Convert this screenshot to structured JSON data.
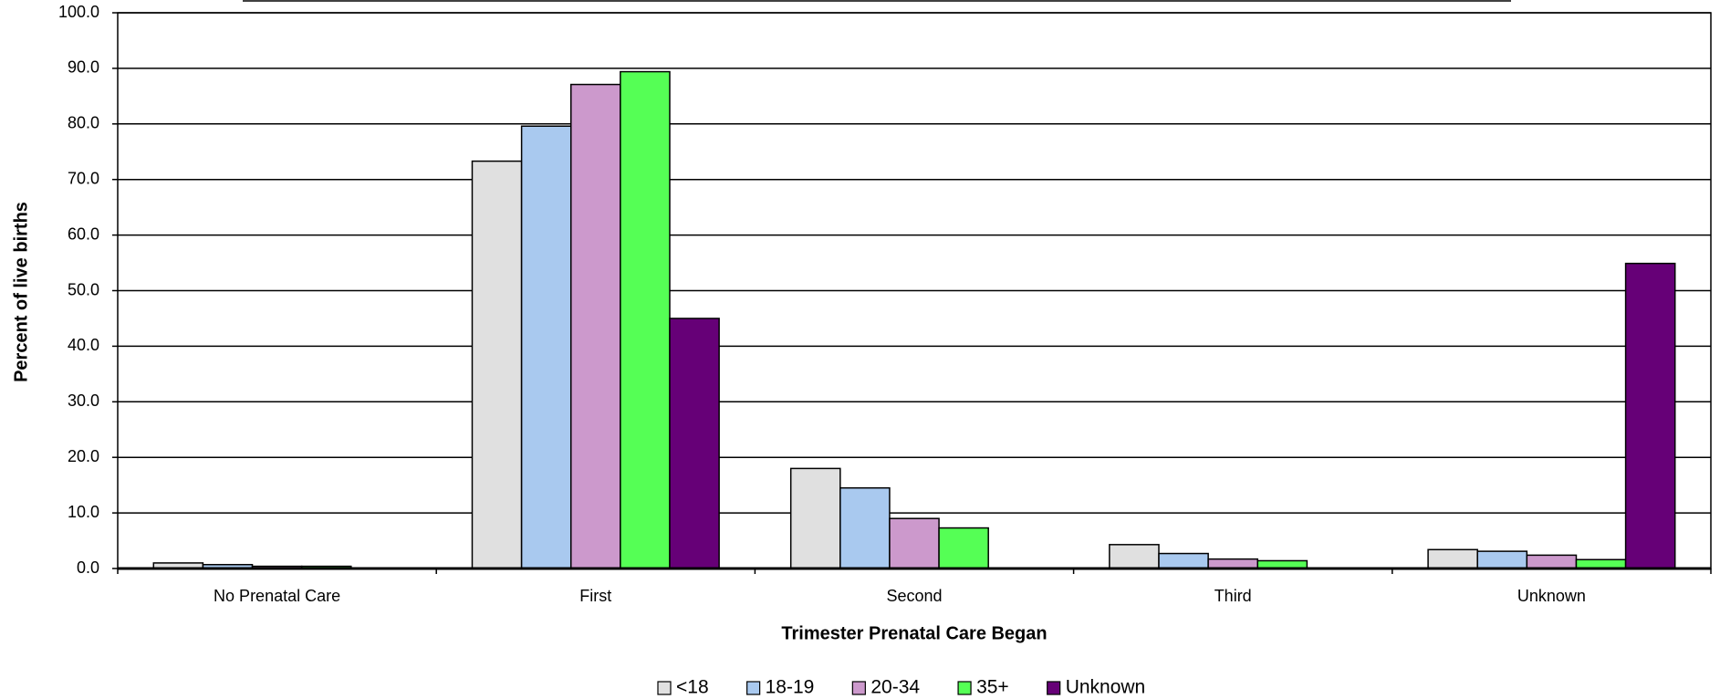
{
  "chart_data": {
    "type": "bar",
    "y_label": "Percent of live births",
    "x_label": "Trimester Prenatal Care Began",
    "categories": [
      "No Prenatal Care",
      "First",
      "Second",
      "Third",
      "Unknown"
    ],
    "series": [
      {
        "name": "<18",
        "color": "#e0e0e0",
        "values": [
          1.0,
          73.3,
          18.0,
          4.3,
          3.4
        ]
      },
      {
        "name": "18-19",
        "color": "#a9c9ef",
        "values": [
          0.7,
          79.6,
          14.5,
          2.7,
          3.1
        ]
      },
      {
        "name": "20-34",
        "color": "#cc99cc",
        "values": [
          0.4,
          87.1,
          9.0,
          1.7,
          2.4
        ]
      },
      {
        "name": "35+",
        "color": "#55ff55",
        "values": [
          0.4,
          89.4,
          7.3,
          1.4,
          1.6
        ]
      },
      {
        "name": "Unknown",
        "color": "#660077",
        "values": [
          0,
          45.0,
          0,
          0,
          54.9
        ]
      }
    ],
    "ylim": [
      0,
      100
    ],
    "yticks": [
      {
        "value": 0,
        "label": "0.0"
      },
      {
        "value": 10,
        "label": "10.0"
      },
      {
        "value": 20,
        "label": "20.0"
      },
      {
        "value": 30,
        "label": "30.0"
      },
      {
        "value": 40,
        "label": "40.0"
      },
      {
        "value": 50,
        "label": "50.0"
      },
      {
        "value": 60,
        "label": "60.0"
      },
      {
        "value": 70,
        "label": "70.0"
      },
      {
        "value": 80,
        "label": "80.0"
      },
      {
        "value": 90,
        "label": "90.0"
      },
      {
        "value": 100,
        "label": "100.0"
      }
    ],
    "grid": true,
    "legend": "bottom"
  }
}
